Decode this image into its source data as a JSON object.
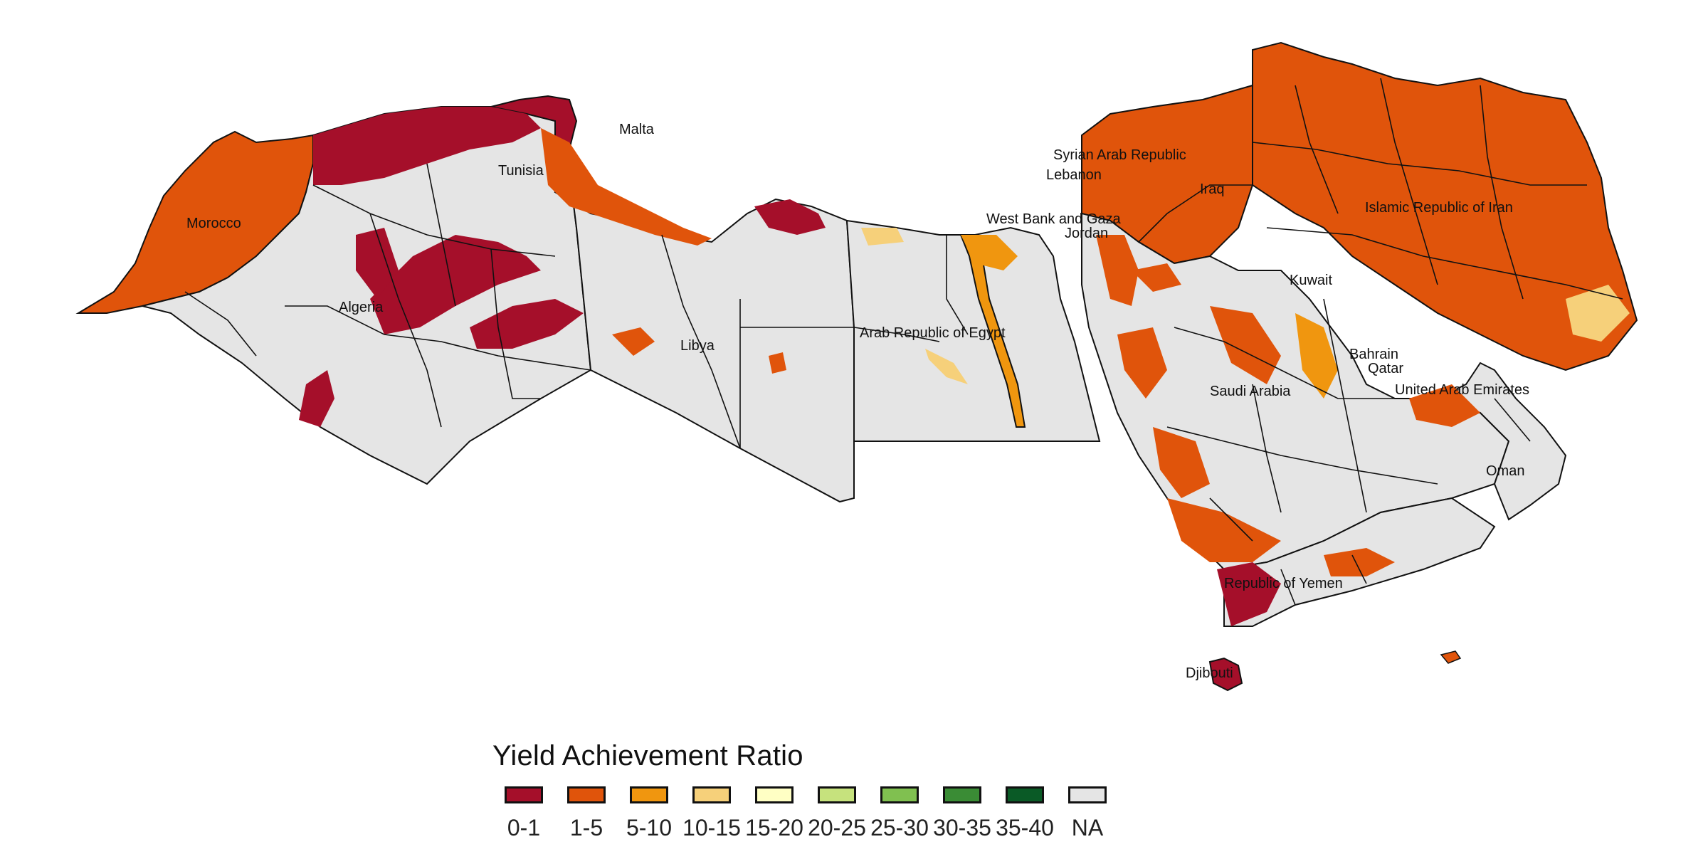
{
  "map": {
    "country_labels": [
      "Malta",
      "Morocco",
      "Algeria",
      "Tunisia",
      "Libya",
      "Arab Republic of Egypt",
      "West Bank and Gaza",
      "Syrian Arab Republic",
      "Lebanon",
      "Jordan",
      "Iraq",
      "Islamic Republic of Iran",
      "Kuwait",
      "Bahrain",
      "Qatar",
      "United Arab Emirates",
      "Saudi Arabia",
      "Oman",
      "Republic of Yemen",
      "Djibouti"
    ]
  },
  "legend": {
    "title": "Yield Achievement Ratio",
    "items": [
      {
        "label": "0-1",
        "color": "#a50f2a"
      },
      {
        "label": "1-5",
        "color": "#e0540b"
      },
      {
        "label": "5-10",
        "color": "#f0960f"
      },
      {
        "label": "10-15",
        "color": "#f6d07a"
      },
      {
        "label": "15-20",
        "color": "#ffffc4"
      },
      {
        "label": "20-25",
        "color": "#c6e27d"
      },
      {
        "label": "25-30",
        "color": "#80c050"
      },
      {
        "label": "30-35",
        "color": "#3a8c35"
      },
      {
        "label": "35-40",
        "color": "#0a5a26"
      },
      {
        "label": "NA",
        "color": "#e5e5e5"
      }
    ]
  },
  "colors": {
    "na_fill": "#e5e5e5",
    "border": "#111111",
    "background": "#ffffff"
  }
}
